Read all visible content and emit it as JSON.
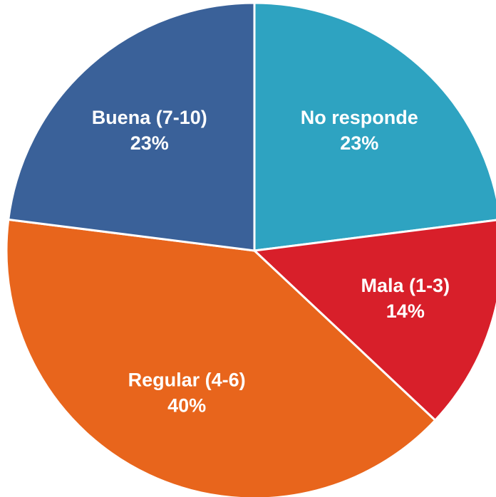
{
  "chart_data": {
    "type": "pie",
    "categories": [
      "No responde",
      "Mala (1-3)",
      "Regular (4-6)",
      "Buena (7-10)"
    ],
    "values": [
      23,
      14,
      40,
      23
    ],
    "value_labels": [
      "23%",
      "14%",
      "40%",
      "23%"
    ],
    "colors": [
      "#2ea3c1",
      "#d81f2a",
      "#e8651c",
      "#3a6199"
    ]
  }
}
